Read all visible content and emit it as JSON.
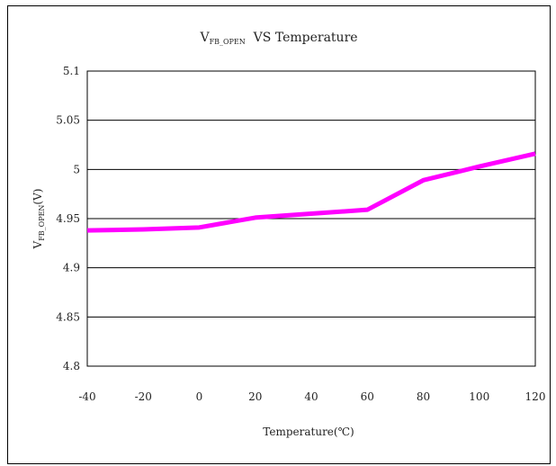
{
  "chart_data": {
    "type": "line",
    "title": "V",
    "title_sub": "FB_OPEN",
    "title_rest": "  VS Temperature",
    "xlabel": "Temperature(℃)",
    "ylabel": "V",
    "ylabel_sub": "FB_OPEN",
    "ylabel_rest": "(V)",
    "xlim": [
      -40,
      120
    ],
    "ylim": [
      4.8,
      5.1
    ],
    "x_ticks": [
      "-40",
      "-20",
      "0",
      "20",
      "40",
      "60",
      "80",
      "100",
      "120"
    ],
    "y_ticks": [
      "5.1",
      "5.05",
      "5",
      "4.95",
      "4.9",
      "4.85",
      "4.8"
    ],
    "grid": "horizontal",
    "legend": "none",
    "series": [
      {
        "color": "#ff00ff",
        "x": [
          -40,
          -20,
          0,
          20,
          40,
          60,
          80,
          100,
          120
        ],
        "y": [
          4.938,
          4.939,
          4.941,
          4.951,
          4.955,
          4.959,
          4.989,
          5.003,
          5.016
        ]
      }
    ]
  }
}
